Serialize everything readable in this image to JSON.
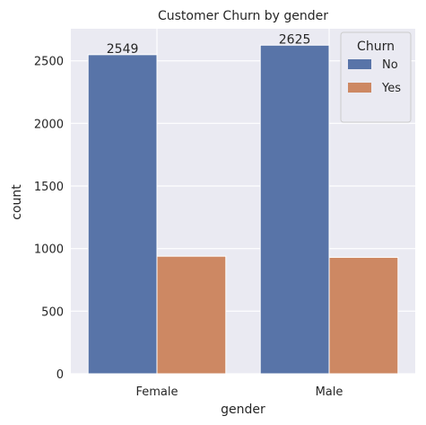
{
  "chart_data": {
    "type": "bar",
    "title": "Customer Churn by gender",
    "xlabel": "gender",
    "ylabel": "count",
    "categories": [
      "Female",
      "Male"
    ],
    "series": [
      {
        "name": "No",
        "values": [
          2549,
          2625
        ],
        "color": "#5874A8"
      },
      {
        "name": "Yes",
        "values": [
          939,
          930
        ],
        "color": "#CD8863"
      }
    ],
    "data_labels": [
      "2549",
      "2625"
    ],
    "y_ticks": [
      0,
      500,
      1000,
      1500,
      2000,
      2500
    ],
    "ylim": [
      0,
      2756
    ],
    "grid": true,
    "legend": {
      "title": "Churn",
      "placement": "top-right"
    },
    "background": "#EAEAF2",
    "gridline_color": "#FFFFFF"
  }
}
